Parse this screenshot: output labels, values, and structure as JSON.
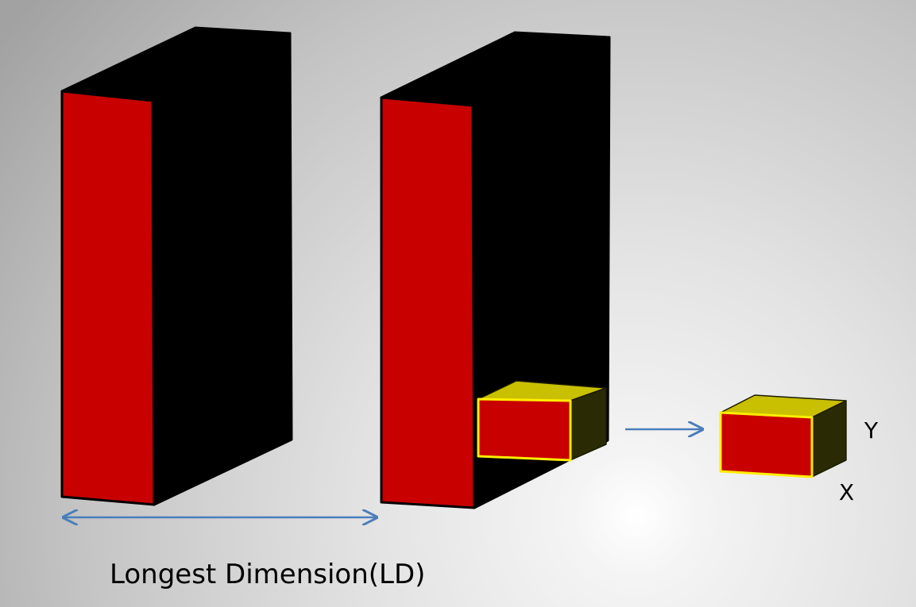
{
  "labels": {
    "dimension": "Longest Dimension(LD)",
    "y": "Y",
    "x": "X"
  }
}
